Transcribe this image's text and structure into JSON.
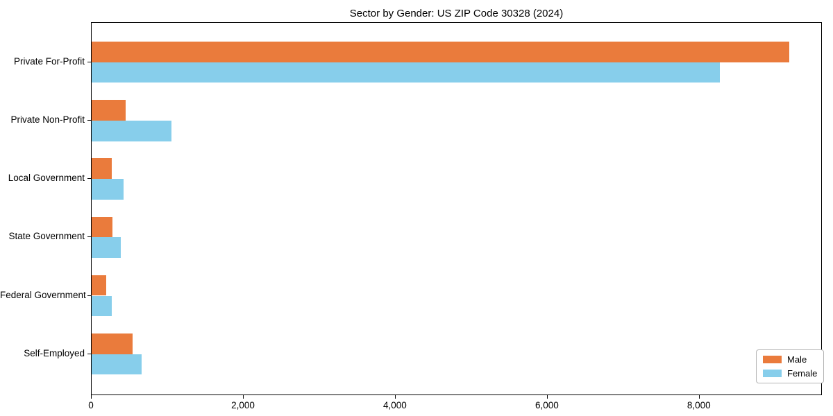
{
  "chart_data": {
    "type": "bar",
    "orientation": "horizontal",
    "title": "Sector by Gender: US ZIP Code 30328 (2024)",
    "xlabel": "",
    "ylabel": "",
    "categories": [
      "Private For-Profit",
      "Private Non-Profit",
      "Local Government",
      "State Government",
      "Federal Government",
      "Self-Employed"
    ],
    "series": [
      {
        "name": "Male",
        "color": "#ea7b3c",
        "values": [
          9175,
          450,
          265,
          270,
          190,
          540
        ]
      },
      {
        "name": "Female",
        "color": "#87ceeb",
        "values": [
          8265,
          1050,
          420,
          385,
          260,
          660
        ]
      }
    ],
    "xlim": [
      0,
      9600
    ],
    "xticks": [
      0,
      2000,
      4000,
      6000,
      8000
    ],
    "xtick_labels": [
      "0",
      "2,000",
      "4,000",
      "6,000",
      "8,000"
    ],
    "grid": false,
    "legend": {
      "position": "lower right",
      "entries": [
        "Male",
        "Female"
      ]
    }
  }
}
